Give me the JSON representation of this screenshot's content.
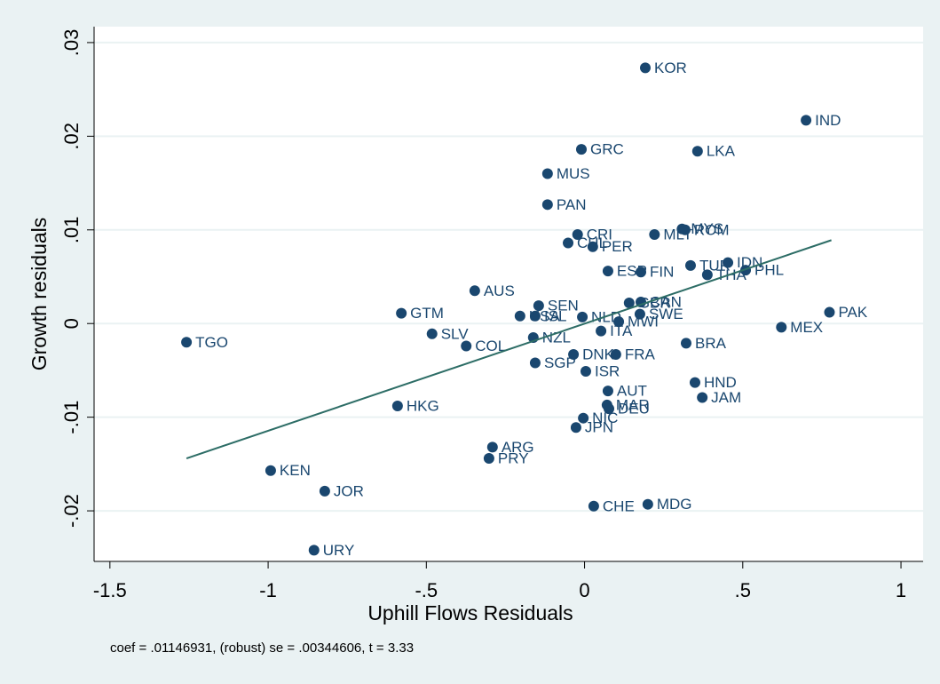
{
  "chart_data": {
    "type": "scatter",
    "x_label": "Uphill Flows Residuals",
    "y_label": "Growth residuals",
    "note": "coef = .01146931, (robust) se = .00344606, t = 3.33",
    "xlim": [
      -1.55,
      1.07
    ],
    "ylim": [
      -0.0254,
      0.0317
    ],
    "xticks": [
      -1.5,
      -1,
      {
        "value": -0.5,
        "label": "-.5"
      },
      0,
      {
        "value": 0.5,
        "label": ".5"
      },
      1
    ],
    "yticks": [
      {
        "value": -0.02,
        "label": "-.02"
      },
      {
        "value": -0.01,
        "label": "-.01"
      },
      0,
      {
        "value": 0.01,
        "label": ".01"
      },
      {
        "value": 0.02,
        "label": ".02"
      },
      {
        "value": 0.03,
        "label": ".03"
      }
    ],
    "grid": true,
    "color": "#1a476f",
    "labels": [
      "KOR",
      "IND",
      "GRC",
      "LKA",
      "MUS",
      "PAN",
      "MYS",
      "ROM",
      "MLT",
      "CRI",
      "CHL",
      "PER",
      "ESP",
      "FIN",
      "TUR",
      "IDN",
      "THA",
      "PHL",
      "AUS",
      "SEN",
      "GBR",
      "CAN",
      "GTM",
      "PAK",
      "MEX",
      "USA",
      "ISL",
      "NLD",
      "MWI",
      "SWE",
      "SLV",
      "NZL",
      "ITA",
      "BRA",
      "TGO",
      "COL",
      "DNK",
      "FRA",
      "SGP",
      "ISR",
      "HND",
      "AUT",
      "JAM",
      "MAR",
      "DEU",
      "HKG",
      "NIC",
      "JPN",
      "ARG",
      "PRY",
      "KEN",
      "JOR",
      "CHE",
      "MDG",
      "URY"
    ],
    "x": [
      0.192,
      0.7,
      -0.01,
      0.357,
      -0.117,
      -0.117,
      0.308,
      0.318,
      0.221,
      -0.022,
      -0.052,
      0.026,
      0.074,
      0.178,
      0.335,
      0.453,
      0.388,
      0.509,
      -0.347,
      -0.145,
      0.141,
      0.178,
      -0.579,
      0.774,
      0.622,
      -0.204,
      -0.156,
      -0.007,
      0.108,
      0.175,
      -0.482,
      -0.162,
      0.052,
      0.321,
      -1.258,
      -0.374,
      -0.035,
      0.099,
      -0.156,
      0.004,
      0.349,
      0.074,
      0.372,
      0.071,
      0.077,
      -0.591,
      -0.004,
      -0.027,
      -0.291,
      -0.302,
      -0.992,
      -0.821,
      0.029,
      0.2,
      -0.855
    ],
    "y": [
      0.0273,
      0.0217,
      0.0186,
      0.0184,
      0.016,
      0.0127,
      0.0101,
      0.01,
      0.0095,
      0.0095,
      0.0086,
      0.0082,
      0.0056,
      0.0055,
      0.0062,
      0.0065,
      0.0052,
      0.0057,
      0.0035,
      0.0019,
      0.0022,
      0.0023,
      0.0011,
      0.0012,
      -0.0004,
      0.0008,
      0.0008,
      0.0007,
      0.0002,
      0.001,
      -0.0011,
      -0.0015,
      -0.0008,
      -0.0021,
      -0.002,
      -0.0024,
      -0.0033,
      -0.0033,
      -0.0042,
      -0.0051,
      -0.0063,
      -0.0072,
      -0.0079,
      -0.0087,
      -0.0091,
      -0.0088,
      -0.0101,
      -0.0111,
      -0.0132,
      -0.0144,
      -0.0157,
      -0.0179,
      -0.0195,
      -0.0193,
      -0.0242
    ],
    "fit": {
      "x": [
        -1.258,
        0.78
      ],
      "y": [
        -0.0144,
        0.0089
      ],
      "color": "#2d6d66"
    }
  }
}
